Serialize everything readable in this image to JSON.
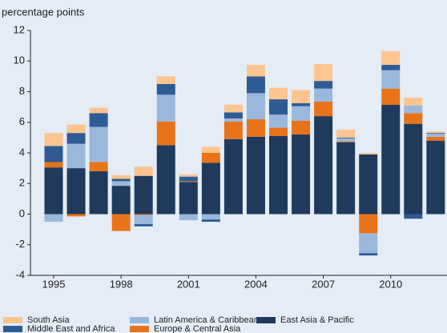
{
  "chart_data": {
    "type": "stacked_bar",
    "y_label": "percentage points",
    "categories": [
      1995,
      null,
      null,
      1998,
      null,
      null,
      2001,
      null,
      null,
      2004,
      null,
      null,
      2007,
      null,
      null,
      2010,
      null,
      null
    ],
    "series": [
      {
        "name": "East Asia & Pacific",
        "color": "#1f3a5c",
        "values": [
          3.05,
          3.0,
          2.8,
          1.85,
          2.5,
          4.5,
          2.1,
          3.35,
          4.9,
          5.05,
          5.1,
          5.2,
          6.4,
          4.7,
          3.9,
          7.15,
          5.9,
          4.8
        ]
      },
      {
        "name": "Europe & Central Asia",
        "color": "#e8731a",
        "values": [
          0.35,
          -0.15,
          0.6,
          -1.1,
          -0.05,
          1.55,
          0.05,
          0.65,
          1.15,
          1.15,
          0.55,
          0.9,
          0.95,
          0.05,
          -1.25,
          1.05,
          0.7,
          0.25
        ]
      },
      {
        "name": "Latin America & Caribbean",
        "color": "#9ab8dc",
        "values": [
          -0.5,
          1.6,
          2.3,
          0.3,
          -0.6,
          1.75,
          -0.4,
          -0.35,
          0.2,
          1.7,
          0.85,
          0.95,
          0.85,
          0.2,
          -1.3,
          1.2,
          0.5,
          0.2
        ]
      },
      {
        "name": "Middle East and Africa",
        "color": "#2e5b94",
        "values": [
          1.05,
          0.7,
          0.9,
          0.15,
          -0.15,
          0.7,
          0.3,
          -0.15,
          0.4,
          1.1,
          1.0,
          0.2,
          0.5,
          0.05,
          -0.15,
          0.35,
          -0.3,
          0.05
        ]
      },
      {
        "name": "South Asia",
        "color": "#fcc48e",
        "values": [
          0.85,
          0.55,
          0.35,
          0.25,
          0.6,
          0.5,
          0.15,
          0.4,
          0.5,
          0.75,
          0.75,
          0.85,
          1.1,
          0.5,
          0.1,
          0.9,
          0.5,
          0.1
        ]
      }
    ],
    "ylim": [
      -4,
      12
    ],
    "yticks": [
      -4,
      -2,
      0,
      2,
      4,
      6,
      8,
      10,
      12
    ]
  }
}
